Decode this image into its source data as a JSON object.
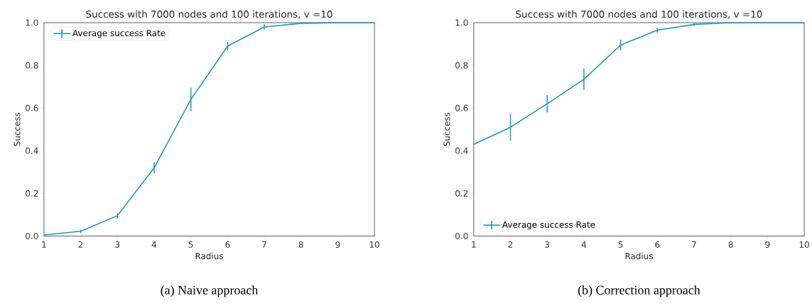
{
  "chart_data": [
    {
      "type": "line",
      "title": "Success with 7000 nodes and 100 iterations, v =10",
      "xlabel": "Radius",
      "ylabel": "Success",
      "annotations": [
        "(a) Naive approach"
      ],
      "x": [
        1,
        2,
        3,
        4,
        5,
        6,
        7,
        8,
        9,
        10
      ],
      "series": [
        {
          "name": "Average success Rate",
          "color": "#1a96c8",
          "values": [
            0.005,
            0.022,
            0.095,
            0.32,
            0.64,
            0.89,
            0.98,
            0.997,
            1.0,
            1.0
          ],
          "errors": [
            null,
            0.008,
            0.012,
            0.025,
            0.055,
            0.02,
            0.012,
            null,
            null,
            null
          ]
        }
      ],
      "xlim": [
        1,
        10
      ],
      "ylim": [
        0,
        1
      ],
      "xticks": [
        1,
        2,
        3,
        4,
        5,
        6,
        7,
        8,
        9,
        10
      ],
      "yticks": [
        {
          "value": 0,
          "label": "0.0"
        },
        {
          "value": 0.2,
          "label": "0.2"
        },
        {
          "value": 0.4,
          "label": "0.4"
        },
        {
          "value": 0.6,
          "label": "0.6"
        },
        {
          "value": 0.8,
          "label": "0.8"
        },
        {
          "value": 1,
          "label": "1.0"
        }
      ],
      "grid": false,
      "legend": "top left",
      "marker": "none",
      "line_style": "solid"
    },
    {
      "type": "line",
      "title": "Success with 7000 nodes and 100 iterations, v =10",
      "xlabel": "Radius",
      "ylabel": "Success",
      "annotations": [
        "(b) Correction approach"
      ],
      "x": [
        1,
        2,
        3,
        4,
        5,
        6,
        7,
        8,
        9,
        10
      ],
      "series": [
        {
          "name": "Average success Rate",
          "color": "#1a96c8",
          "values": [
            0.43,
            0.51,
            0.62,
            0.735,
            0.895,
            0.965,
            0.992,
            1.0,
            1.0,
            1.0
          ],
          "errors": [
            null,
            0.063,
            0.04,
            0.05,
            0.025,
            0.012,
            0.006,
            null,
            null,
            null
          ]
        }
      ],
      "xlim": [
        1,
        10
      ],
      "ylim": [
        0,
        1
      ],
      "xticks": [
        1,
        2,
        3,
        4,
        5,
        6,
        7,
        8,
        9,
        10
      ],
      "yticks": [
        {
          "value": 0,
          "label": "0.0"
        },
        {
          "value": 0.2,
          "label": "0.2"
        },
        {
          "value": 0.4,
          "label": "0.4"
        },
        {
          "value": 0.6,
          "label": "0.6"
        },
        {
          "value": 0.8,
          "label": "0.8"
        },
        {
          "value": 1,
          "label": "1.0"
        }
      ],
      "grid": false,
      "legend": "bottom left",
      "marker": "none",
      "line_style": "solid"
    }
  ]
}
